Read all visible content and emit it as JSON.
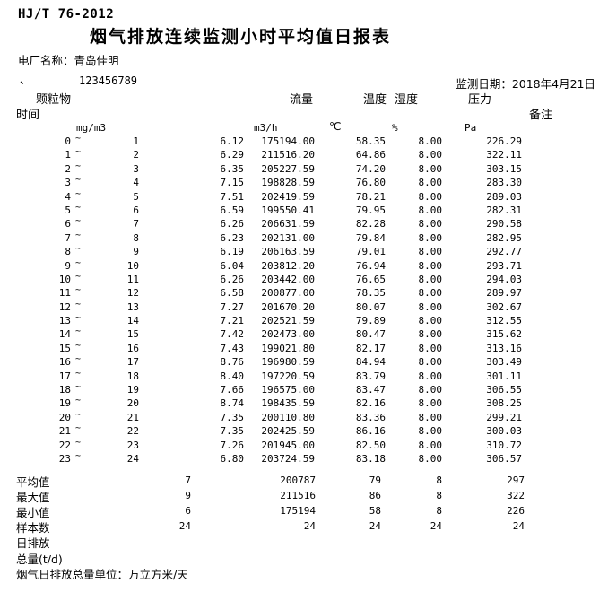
{
  "header": {
    "standard": "HJ/T 76-2012",
    "title": "烟气排放连续监测小时平均值日报表",
    "plant": "电厂名称：青岛佳明",
    "mark": "、",
    "serial": "123456789",
    "date": "监测日期：2018年4月21日"
  },
  "table": {
    "col_headers": {
      "particulate": "颗粒物",
      "time": "时间",
      "flow": "流量",
      "temperature": "温度",
      "humidity": "湿度",
      "pressure": "压力",
      "remark": "备注"
    },
    "units": {
      "particulate": "mg/m3",
      "flow": "m3/h",
      "temperature": "℃",
      "humidity": "%",
      "pressure": "Pa"
    },
    "tilde": "~",
    "rows": [
      {
        "from": "0",
        "to": "1",
        "dust": "6.12",
        "flow": "175194.00",
        "temp": "58.35",
        "hum": "8.00",
        "pres": "226.29"
      },
      {
        "from": "1",
        "to": "2",
        "dust": "6.29",
        "flow": "211516.20",
        "temp": "64.86",
        "hum": "8.00",
        "pres": "322.11"
      },
      {
        "from": "2",
        "to": "3",
        "dust": "6.35",
        "flow": "205227.59",
        "temp": "74.20",
        "hum": "8.00",
        "pres": "303.15"
      },
      {
        "from": "3",
        "to": "4",
        "dust": "7.15",
        "flow": "198828.59",
        "temp": "76.80",
        "hum": "8.00",
        "pres": "283.30"
      },
      {
        "from": "4",
        "to": "5",
        "dust": "7.51",
        "flow": "202419.59",
        "temp": "78.21",
        "hum": "8.00",
        "pres": "289.03"
      },
      {
        "from": "5",
        "to": "6",
        "dust": "6.59",
        "flow": "199550.41",
        "temp": "79.95",
        "hum": "8.00",
        "pres": "282.31"
      },
      {
        "from": "6",
        "to": "7",
        "dust": "6.26",
        "flow": "206631.59",
        "temp": "82.28",
        "hum": "8.00",
        "pres": "290.58"
      },
      {
        "from": "7",
        "to": "8",
        "dust": "6.23",
        "flow": "202131.00",
        "temp": "79.84",
        "hum": "8.00",
        "pres": "282.95"
      },
      {
        "from": "8",
        "to": "9",
        "dust": "6.19",
        "flow": "206163.59",
        "temp": "79.01",
        "hum": "8.00",
        "pres": "292.77"
      },
      {
        "from": "9",
        "to": "10",
        "dust": "6.04",
        "flow": "203812.20",
        "temp": "76.94",
        "hum": "8.00",
        "pres": "293.71"
      },
      {
        "from": "10",
        "to": "11",
        "dust": "6.26",
        "flow": "203442.00",
        "temp": "76.65",
        "hum": "8.00",
        "pres": "294.03"
      },
      {
        "from": "11",
        "to": "12",
        "dust": "6.58",
        "flow": "200877.00",
        "temp": "78.35",
        "hum": "8.00",
        "pres": "289.97"
      },
      {
        "from": "12",
        "to": "13",
        "dust": "7.27",
        "flow": "201670.20",
        "temp": "80.07",
        "hum": "8.00",
        "pres": "302.67"
      },
      {
        "from": "13",
        "to": "14",
        "dust": "7.21",
        "flow": "202521.59",
        "temp": "79.89",
        "hum": "8.00",
        "pres": "312.55"
      },
      {
        "from": "14",
        "to": "15",
        "dust": "7.42",
        "flow": "202473.00",
        "temp": "80.47",
        "hum": "8.00",
        "pres": "315.62"
      },
      {
        "from": "15",
        "to": "16",
        "dust": "7.43",
        "flow": "199021.80",
        "temp": "82.17",
        "hum": "8.00",
        "pres": "313.16"
      },
      {
        "from": "16",
        "to": "17",
        "dust": "8.76",
        "flow": "196980.59",
        "temp": "84.94",
        "hum": "8.00",
        "pres": "303.49"
      },
      {
        "from": "17",
        "to": "18",
        "dust": "8.40",
        "flow": "197220.59",
        "temp": "83.79",
        "hum": "8.00",
        "pres": "301.11"
      },
      {
        "from": "18",
        "to": "19",
        "dust": "7.66",
        "flow": "196575.00",
        "temp": "83.47",
        "hum": "8.00",
        "pres": "306.55"
      },
      {
        "from": "19",
        "to": "20",
        "dust": "8.74",
        "flow": "198435.59",
        "temp": "82.16",
        "hum": "8.00",
        "pres": "308.25"
      },
      {
        "from": "20",
        "to": "21",
        "dust": "7.35",
        "flow": "200110.80",
        "temp": "83.36",
        "hum": "8.00",
        "pres": "299.21"
      },
      {
        "from": "21",
        "to": "22",
        "dust": "7.35",
        "flow": "202425.59",
        "temp": "86.16",
        "hum": "8.00",
        "pres": "300.03"
      },
      {
        "from": "22",
        "to": "23",
        "dust": "7.26",
        "flow": "201945.00",
        "temp": "82.50",
        "hum": "8.00",
        "pres": "310.72"
      },
      {
        "from": "23",
        "to": "24",
        "dust": "6.80",
        "flow": "203724.59",
        "temp": "83.18",
        "hum": "8.00",
        "pres": "306.57"
      }
    ],
    "summary": [
      {
        "label": "平均值",
        "dust": "7",
        "flow": "200787",
        "temp": "79",
        "hum": "8",
        "pres": "297"
      },
      {
        "label": "最大值",
        "dust": "9",
        "flow": "211516",
        "temp": "86",
        "hum": "8",
        "pres": "322"
      },
      {
        "label": "最小值",
        "dust": "6",
        "flow": "175194",
        "temp": "58",
        "hum": "8",
        "pres": "226"
      },
      {
        "label": "样本数",
        "dust": "24",
        "flow": "24",
        "temp": "24",
        "hum": "24",
        "pres": "24"
      }
    ],
    "footer_lines": [
      "日排放",
      "总量(t/d)",
      "烟气日排放总量单位：万立方米/天"
    ]
  }
}
